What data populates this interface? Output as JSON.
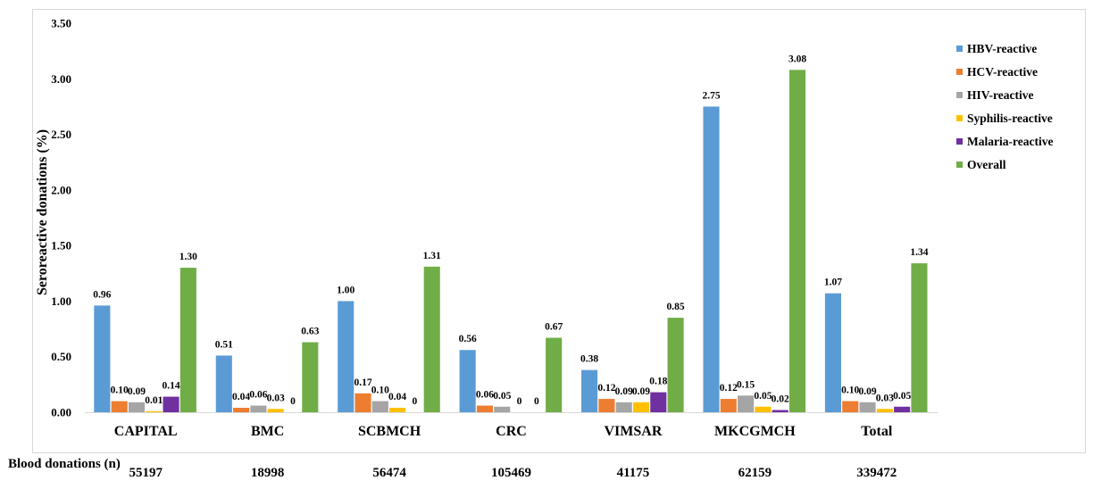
{
  "chart_data": {
    "type": "bar",
    "title": "",
    "xlabel": "",
    "ylabel": "Seroreactive donations (%)",
    "ylim": [
      0,
      3.5
    ],
    "yticks": [
      "0.00",
      "0.50",
      "1.00",
      "1.50",
      "2.00",
      "2.50",
      "3.00",
      "3.50"
    ],
    "grid": false,
    "legend_position": "top-right",
    "categories": [
      "CAPITAL",
      "BMC",
      "SCBMCH",
      "CRC",
      "VIMSAR",
      "MKCGMCH",
      "Total"
    ],
    "series": [
      {
        "name": "HBV-reactive",
        "color": "#5b9bd5",
        "values": [
          0.96,
          0.51,
          1.0,
          0.56,
          0.38,
          2.75,
          1.07
        ],
        "labels": [
          "0.96",
          "0.51",
          "1.00",
          "0.56",
          "0.38",
          "2.75",
          "1.07"
        ]
      },
      {
        "name": "HCV-reactive",
        "color": "#ed7d31",
        "values": [
          0.1,
          0.04,
          0.17,
          0.06,
          0.12,
          0.12,
          0.1
        ],
        "labels": [
          "0.10",
          "0.04",
          "0.17",
          "0.06",
          "0.12",
          "0.12",
          "0.10"
        ]
      },
      {
        "name": "HIV-reactive",
        "color": "#a5a5a5",
        "values": [
          0.09,
          0.06,
          0.1,
          0.05,
          0.09,
          0.15,
          0.09
        ],
        "labels": [
          "0.09",
          "0.06",
          "0.10",
          "0.05",
          "0.09",
          "0.15",
          "0.09"
        ]
      },
      {
        "name": "Syphilis-reactive",
        "color": "#ffc000",
        "values": [
          0.01,
          0.03,
          0.04,
          0,
          0.09,
          0.05,
          0.03
        ],
        "labels": [
          "0.01",
          "0.03",
          "0.04",
          "0",
          "0.09",
          "0.05",
          "0.03"
        ]
      },
      {
        "name": "Malaria-reactive",
        "color": "#7030a0",
        "values": [
          0.14,
          0,
          0,
          0,
          0.18,
          0.02,
          0.05
        ],
        "labels": [
          "0.14",
          "0",
          "0",
          "0",
          "0.18",
          "0.02",
          "0.05"
        ]
      },
      {
        "name": "Overall",
        "color": "#70ad47",
        "values": [
          1.3,
          0.63,
          1.31,
          0.67,
          0.85,
          3.08,
          1.34
        ],
        "labels": [
          "1.30",
          "0.63",
          "1.31",
          "0.67",
          "0.85",
          "3.08",
          "1.34"
        ]
      }
    ]
  },
  "donations": {
    "caption": "Blood donations (n)",
    "values": [
      "55197",
      "18998",
      "56474",
      "105469",
      "41175",
      "62159",
      "339472"
    ]
  }
}
